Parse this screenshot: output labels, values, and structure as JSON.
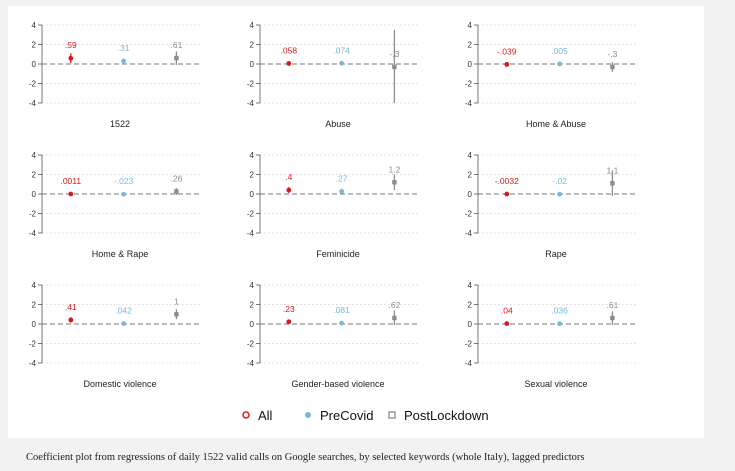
{
  "colors": {
    "All": "#d7191c",
    "PreCovid": "#74b9dc",
    "PostLockdown": "#8c8c8c",
    "axis": "#555555",
    "grid": "#cfcfcf",
    "zero": "#777777"
  },
  "chart_data": {
    "type": "scatter",
    "subtype": "coefficient-plot",
    "ylim": [
      -4,
      4
    ],
    "yticks": [
      -4,
      -2,
      0,
      2,
      4
    ],
    "grid": "horizontal dotted",
    "reference_line": 0,
    "legend": {
      "placement": "bottom",
      "entries": [
        "All",
        "PreCovid",
        "PostLockdown"
      ]
    },
    "series": [
      {
        "name": "All",
        "marker": "circle"
      },
      {
        "name": "PreCovid",
        "marker": "circle"
      },
      {
        "name": "PostLockdown",
        "marker": "square"
      }
    ],
    "panels": [
      {
        "title": "1522",
        "points": [
          {
            "series": "All",
            "value": 0.59,
            "label": ".59",
            "ci": [
              0.1,
              1.1
            ]
          },
          {
            "series": "PreCovid",
            "value": 0.31,
            "label": ".31",
            "ci": [
              0.1,
              0.5
            ]
          },
          {
            "series": "PostLockdown",
            "value": 0.61,
            "label": ".61",
            "ci": [
              -0.1,
              1.3
            ]
          }
        ]
      },
      {
        "title": "Abuse",
        "points": [
          {
            "series": "All",
            "value": 0.058,
            "label": ".058",
            "ci": [
              -0.1,
              0.2
            ]
          },
          {
            "series": "PreCovid",
            "value": 0.074,
            "label": ".074",
            "ci": [
              -0.05,
              0.2
            ]
          },
          {
            "series": "PostLockdown",
            "value": -0.3,
            "label": "-.3",
            "ci": [
              -4.1,
              3.5
            ]
          }
        ]
      },
      {
        "title": "Home & Abuse",
        "points": [
          {
            "series": "All",
            "value": -0.039,
            "label": "-.039",
            "ci": [
              -0.15,
              0.07
            ]
          },
          {
            "series": "PreCovid",
            "value": 0.005,
            "label": ".005",
            "ci": [
              -0.08,
              0.09
            ]
          },
          {
            "series": "PostLockdown",
            "value": -0.3,
            "label": "-.3",
            "ci": [
              -0.8,
              0.2
            ]
          }
        ]
      },
      {
        "title": "Home & Rape",
        "points": [
          {
            "series": "All",
            "value": 0.0011,
            "label": ".0011",
            "ci": [
              -0.1,
              0.1
            ]
          },
          {
            "series": "PreCovid",
            "value": -0.023,
            "label": "-.023",
            "ci": [
              -0.1,
              0.06
            ]
          },
          {
            "series": "PostLockdown",
            "value": 0.26,
            "label": ".26",
            "ci": [
              -0.1,
              0.6
            ]
          }
        ]
      },
      {
        "title": "Feminicide",
        "points": [
          {
            "series": "All",
            "value": 0.4,
            "label": ".4",
            "ci": [
              0.1,
              0.7
            ]
          },
          {
            "series": "PreCovid",
            "value": 0.27,
            "label": ".27",
            "ci": [
              0.05,
              0.5
            ]
          },
          {
            "series": "PostLockdown",
            "value": 1.2,
            "label": "1.2",
            "ci": [
              0.4,
              2.0
            ]
          }
        ]
      },
      {
        "title": "Rape",
        "points": [
          {
            "series": "All",
            "value": -0.0032,
            "label": "-.0032",
            "ci": [
              -0.1,
              0.1
            ]
          },
          {
            "series": "PreCovid",
            "value": -0.02,
            "label": "-.02",
            "ci": [
              -0.1,
              0.06
            ]
          },
          {
            "series": "PostLockdown",
            "value": 1.1,
            "label": "1.1",
            "ci": [
              -0.2,
              2.4
            ]
          }
        ]
      },
      {
        "title": "Domestic violence",
        "points": [
          {
            "series": "All",
            "value": 0.41,
            "label": ".41",
            "ci": [
              0.15,
              0.7
            ]
          },
          {
            "series": "PreCovid",
            "value": 0.042,
            "label": ".042",
            "ci": [
              -0.05,
              0.13
            ]
          },
          {
            "series": "PostLockdown",
            "value": 1.0,
            "label": "1",
            "ci": [
              0.5,
              1.5
            ]
          }
        ]
      },
      {
        "title": "Gender-based violence",
        "points": [
          {
            "series": "All",
            "value": 0.23,
            "label": ".23",
            "ci": [
              0.05,
              0.4
            ]
          },
          {
            "series": "PreCovid",
            "value": 0.081,
            "label": ".081",
            "ci": [
              0.0,
              0.16
            ]
          },
          {
            "series": "PostLockdown",
            "value": 0.62,
            "label": ".62",
            "ci": [
              -0.1,
              1.4
            ]
          }
        ]
      },
      {
        "title": "Sexual violence",
        "points": [
          {
            "series": "All",
            "value": 0.04,
            "label": ".04",
            "ci": [
              -0.05,
              0.13
            ]
          },
          {
            "series": "PreCovid",
            "value": 0.036,
            "label": ".036",
            "ci": [
              -0.05,
              0.12
            ]
          },
          {
            "series": "PostLockdown",
            "value": 0.61,
            "label": ".61",
            "ci": [
              -0.1,
              1.3
            ]
          }
        ]
      }
    ]
  },
  "caption": "Coefficient plot from regressions of daily 1522 valid calls on Google searches, by selected keywords (whole Italy), lagged predictors"
}
